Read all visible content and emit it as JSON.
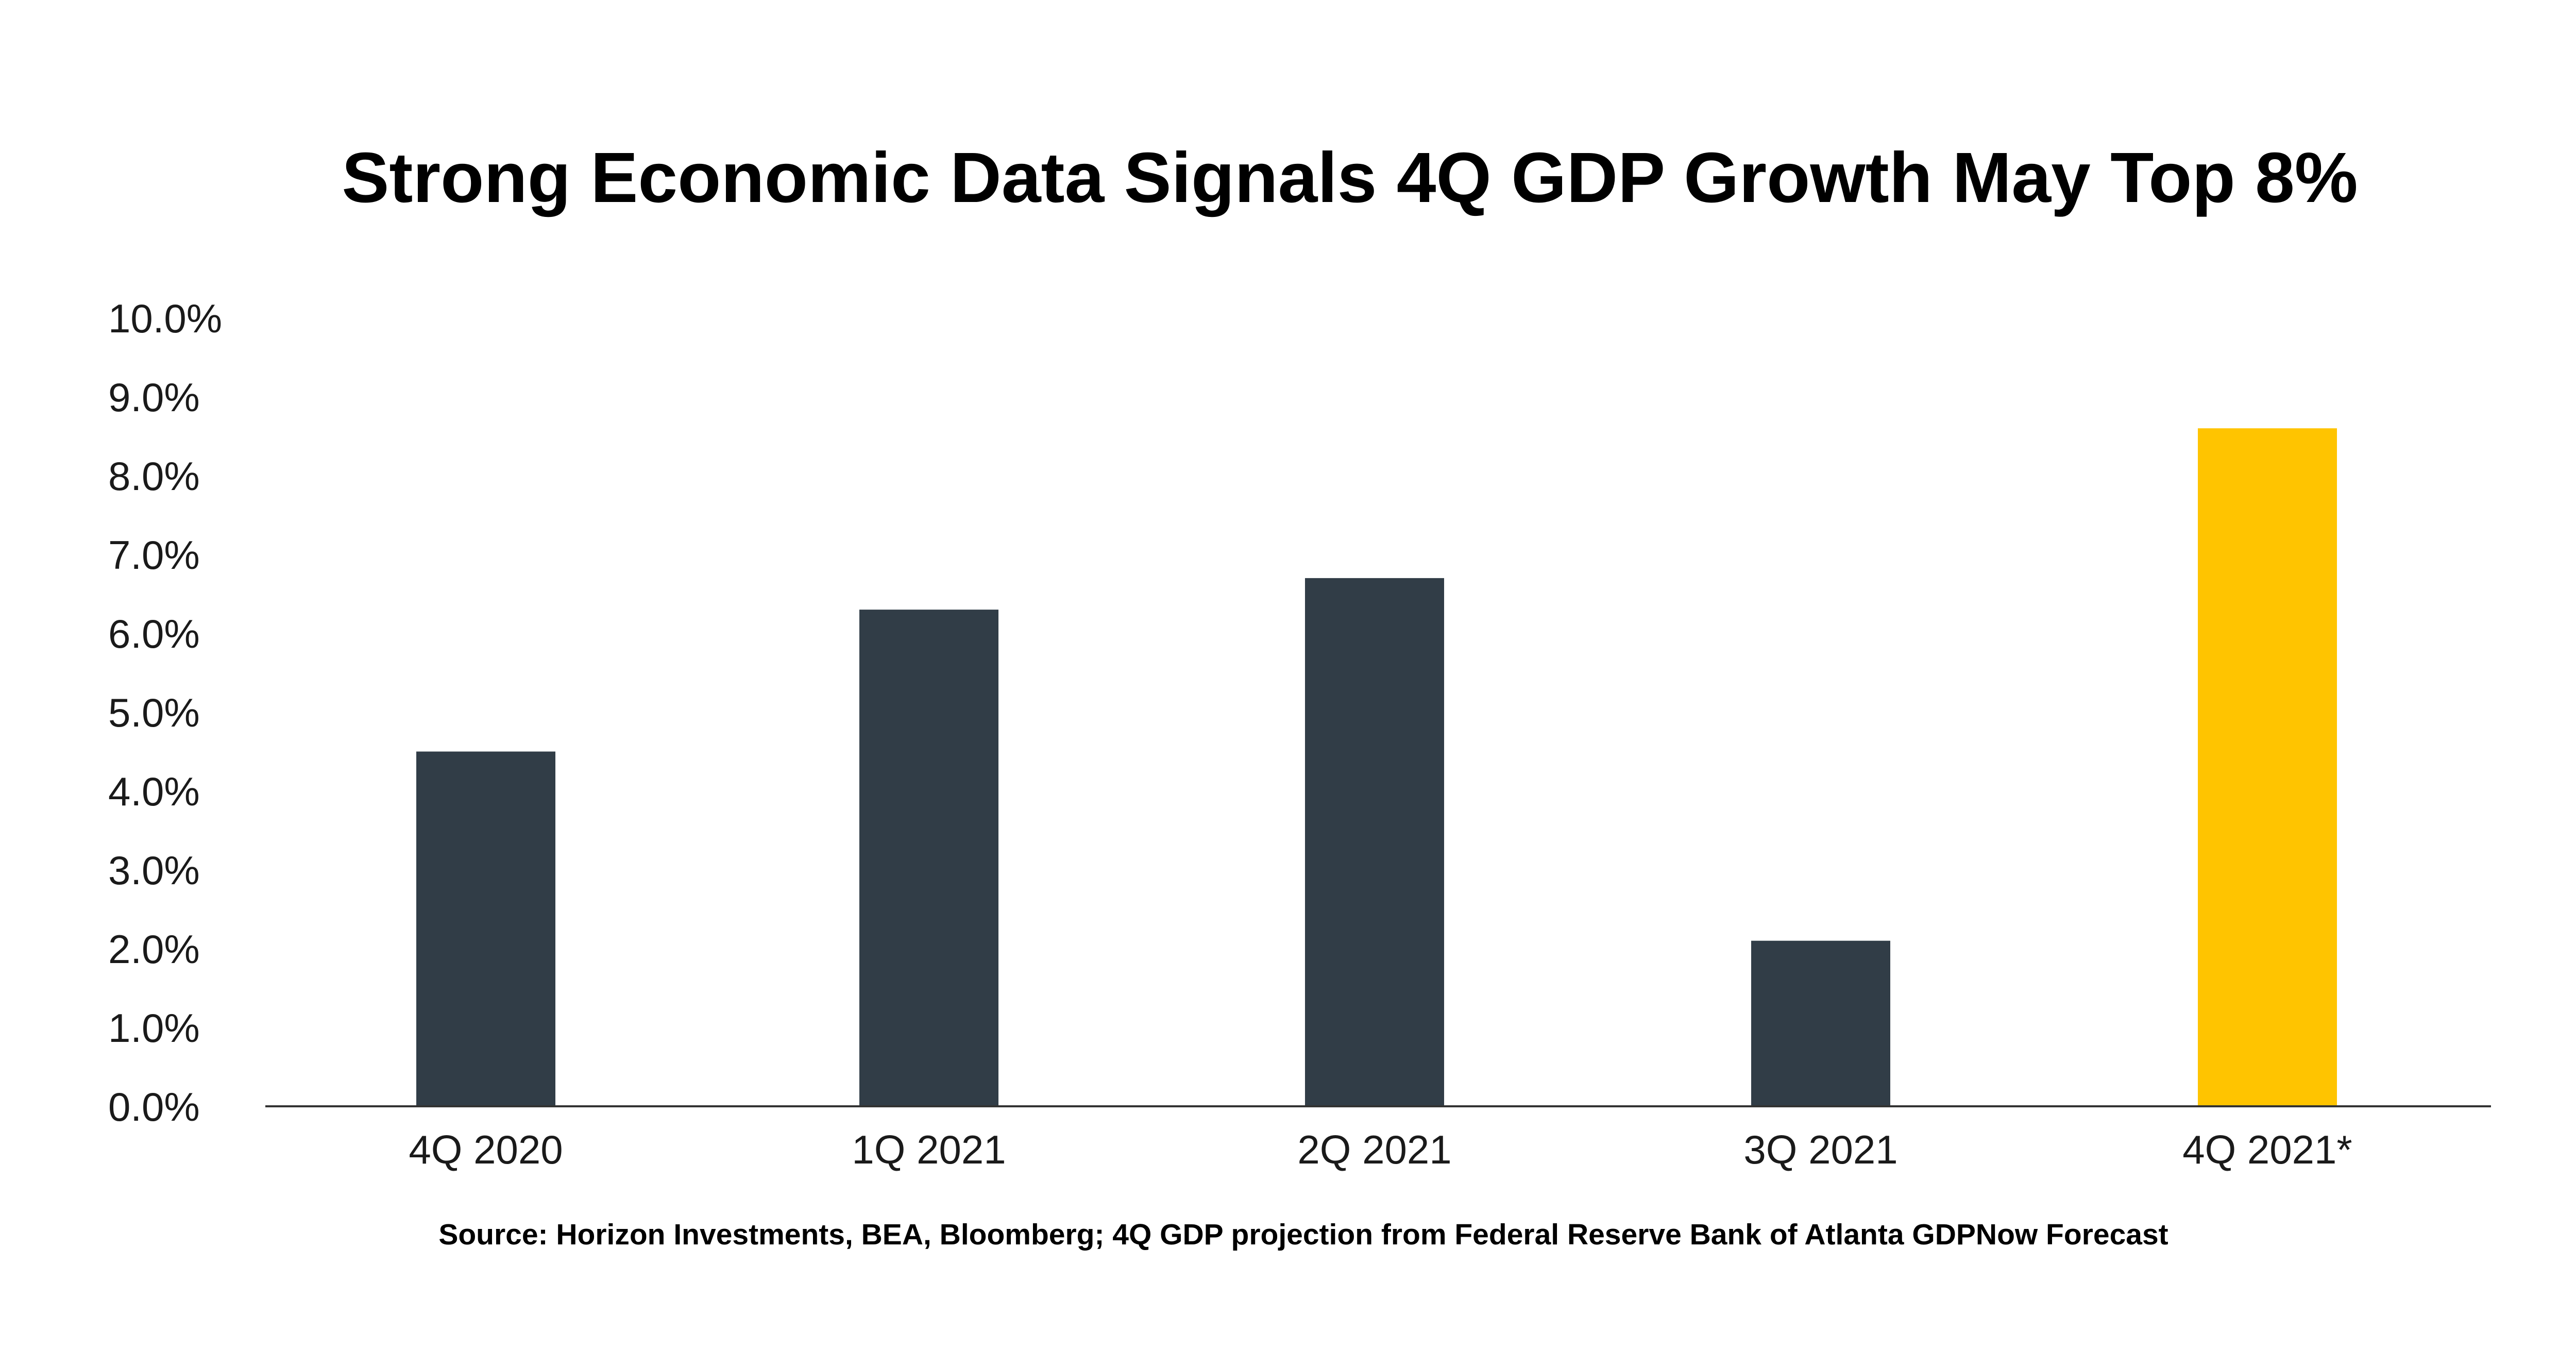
{
  "chart_data": {
    "type": "bar",
    "title": "Strong Economic Data Signals 4Q GDP Growth May Top 8%",
    "categories": [
      "4Q 2020",
      "1Q 2021",
      "2Q 2021",
      "3Q 2021",
      "4Q 2021*"
    ],
    "values": [
      4.5,
      6.3,
      6.7,
      2.1,
      8.6
    ],
    "ylim": [
      0,
      10
    ],
    "yticks": [
      "0.0%",
      "1.0%",
      "2.0%",
      "3.0%",
      "4.0%",
      "5.0%",
      "6.0%",
      "7.0%",
      "8.0%",
      "9.0%",
      "10.0%"
    ],
    "xlabel": "",
    "ylabel": "",
    "grid": false,
    "colors": {
      "actual": "#313D47",
      "projection": "#FFC400",
      "axis": "#333333"
    },
    "highlight_index": 4
  },
  "source_note": "Source: Horizon Investments, BEA, Bloomberg; 4Q GDP projection from Federal Reserve Bank of Atlanta GDPNow Forecast"
}
